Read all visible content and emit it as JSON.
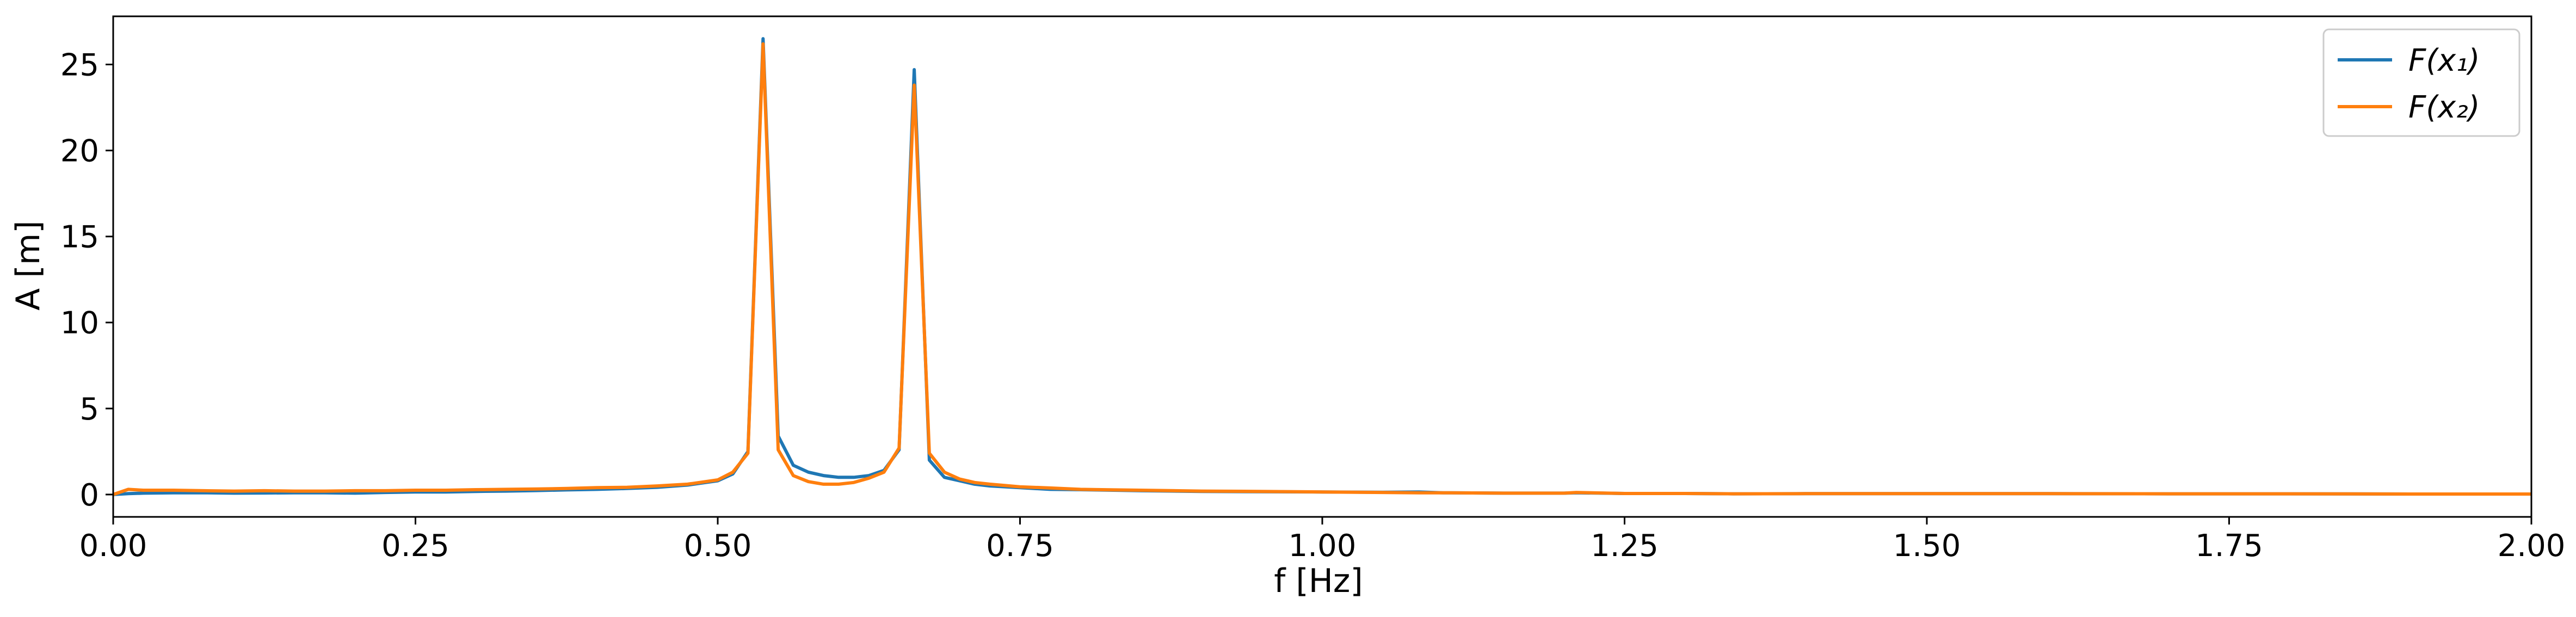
{
  "chart_data": {
    "type": "line",
    "xlabel": "f [Hz]",
    "ylabel": "A [m]",
    "xlim": [
      0.0,
      2.0
    ],
    "ylim": [
      -1.3,
      27.8
    ],
    "xticks": [
      "0.00",
      "0.25",
      "0.50",
      "0.75",
      "1.00",
      "1.25",
      "1.50",
      "1.75",
      "2.00"
    ],
    "yticks": [
      "0",
      "5",
      "10",
      "15",
      "20",
      "25"
    ],
    "grid": false,
    "legend_position": "top-right",
    "x": [
      0.0,
      0.0125,
      0.025,
      0.05,
      0.075,
      0.1,
      0.125,
      0.15,
      0.175,
      0.2,
      0.225,
      0.25,
      0.275,
      0.3,
      0.325,
      0.35,
      0.375,
      0.4,
      0.425,
      0.45,
      0.475,
      0.5,
      0.5125,
      0.525,
      0.5375,
      0.55,
      0.5625,
      0.575,
      0.5875,
      0.6,
      0.6125,
      0.625,
      0.6375,
      0.65,
      0.6625,
      0.675,
      0.6875,
      0.7,
      0.7125,
      0.725,
      0.75,
      0.775,
      0.8,
      0.85,
      0.9,
      0.95,
      1.0,
      1.05,
      1.08,
      1.1,
      1.15,
      1.2,
      1.21,
      1.25,
      1.3,
      1.34,
      1.4,
      1.5,
      1.6,
      1.7,
      1.8,
      1.9,
      2.0
    ],
    "series": [
      {
        "name": "F(x₁)",
        "color": "#1f77b4",
        "values": [
          0.0,
          0.05,
          0.08,
          0.1,
          0.1,
          0.08,
          0.09,
          0.1,
          0.1,
          0.08,
          0.12,
          0.15,
          0.15,
          0.18,
          0.2,
          0.23,
          0.27,
          0.3,
          0.35,
          0.42,
          0.55,
          0.8,
          1.2,
          2.5,
          26.5,
          3.4,
          1.7,
          1.3,
          1.1,
          1.0,
          1.0,
          1.1,
          1.4,
          2.6,
          24.7,
          2.0,
          1.0,
          0.8,
          0.6,
          0.5,
          0.4,
          0.3,
          0.28,
          0.22,
          0.18,
          0.16,
          0.15,
          0.13,
          0.15,
          0.1,
          0.08,
          0.08,
          0.1,
          0.06,
          0.06,
          0.04,
          0.05,
          0.05,
          0.05,
          0.04,
          0.04,
          0.03,
          0.03
        ]
      },
      {
        "name": "F(x₂)",
        "color": "#ff7f0e",
        "values": [
          0.0,
          0.3,
          0.25,
          0.25,
          0.22,
          0.2,
          0.22,
          0.2,
          0.2,
          0.22,
          0.22,
          0.25,
          0.25,
          0.28,
          0.3,
          0.32,
          0.35,
          0.4,
          0.42,
          0.5,
          0.6,
          0.85,
          1.3,
          2.4,
          26.2,
          2.6,
          1.1,
          0.75,
          0.6,
          0.6,
          0.7,
          0.95,
          1.3,
          2.7,
          23.8,
          2.4,
          1.3,
          0.9,
          0.7,
          0.6,
          0.45,
          0.38,
          0.3,
          0.25,
          0.2,
          0.18,
          0.15,
          0.12,
          0.1,
          0.1,
          0.08,
          0.08,
          0.12,
          0.06,
          0.06,
          0.04,
          0.05,
          0.05,
          0.05,
          0.04,
          0.04,
          0.03,
          0.03
        ]
      }
    ]
  }
}
